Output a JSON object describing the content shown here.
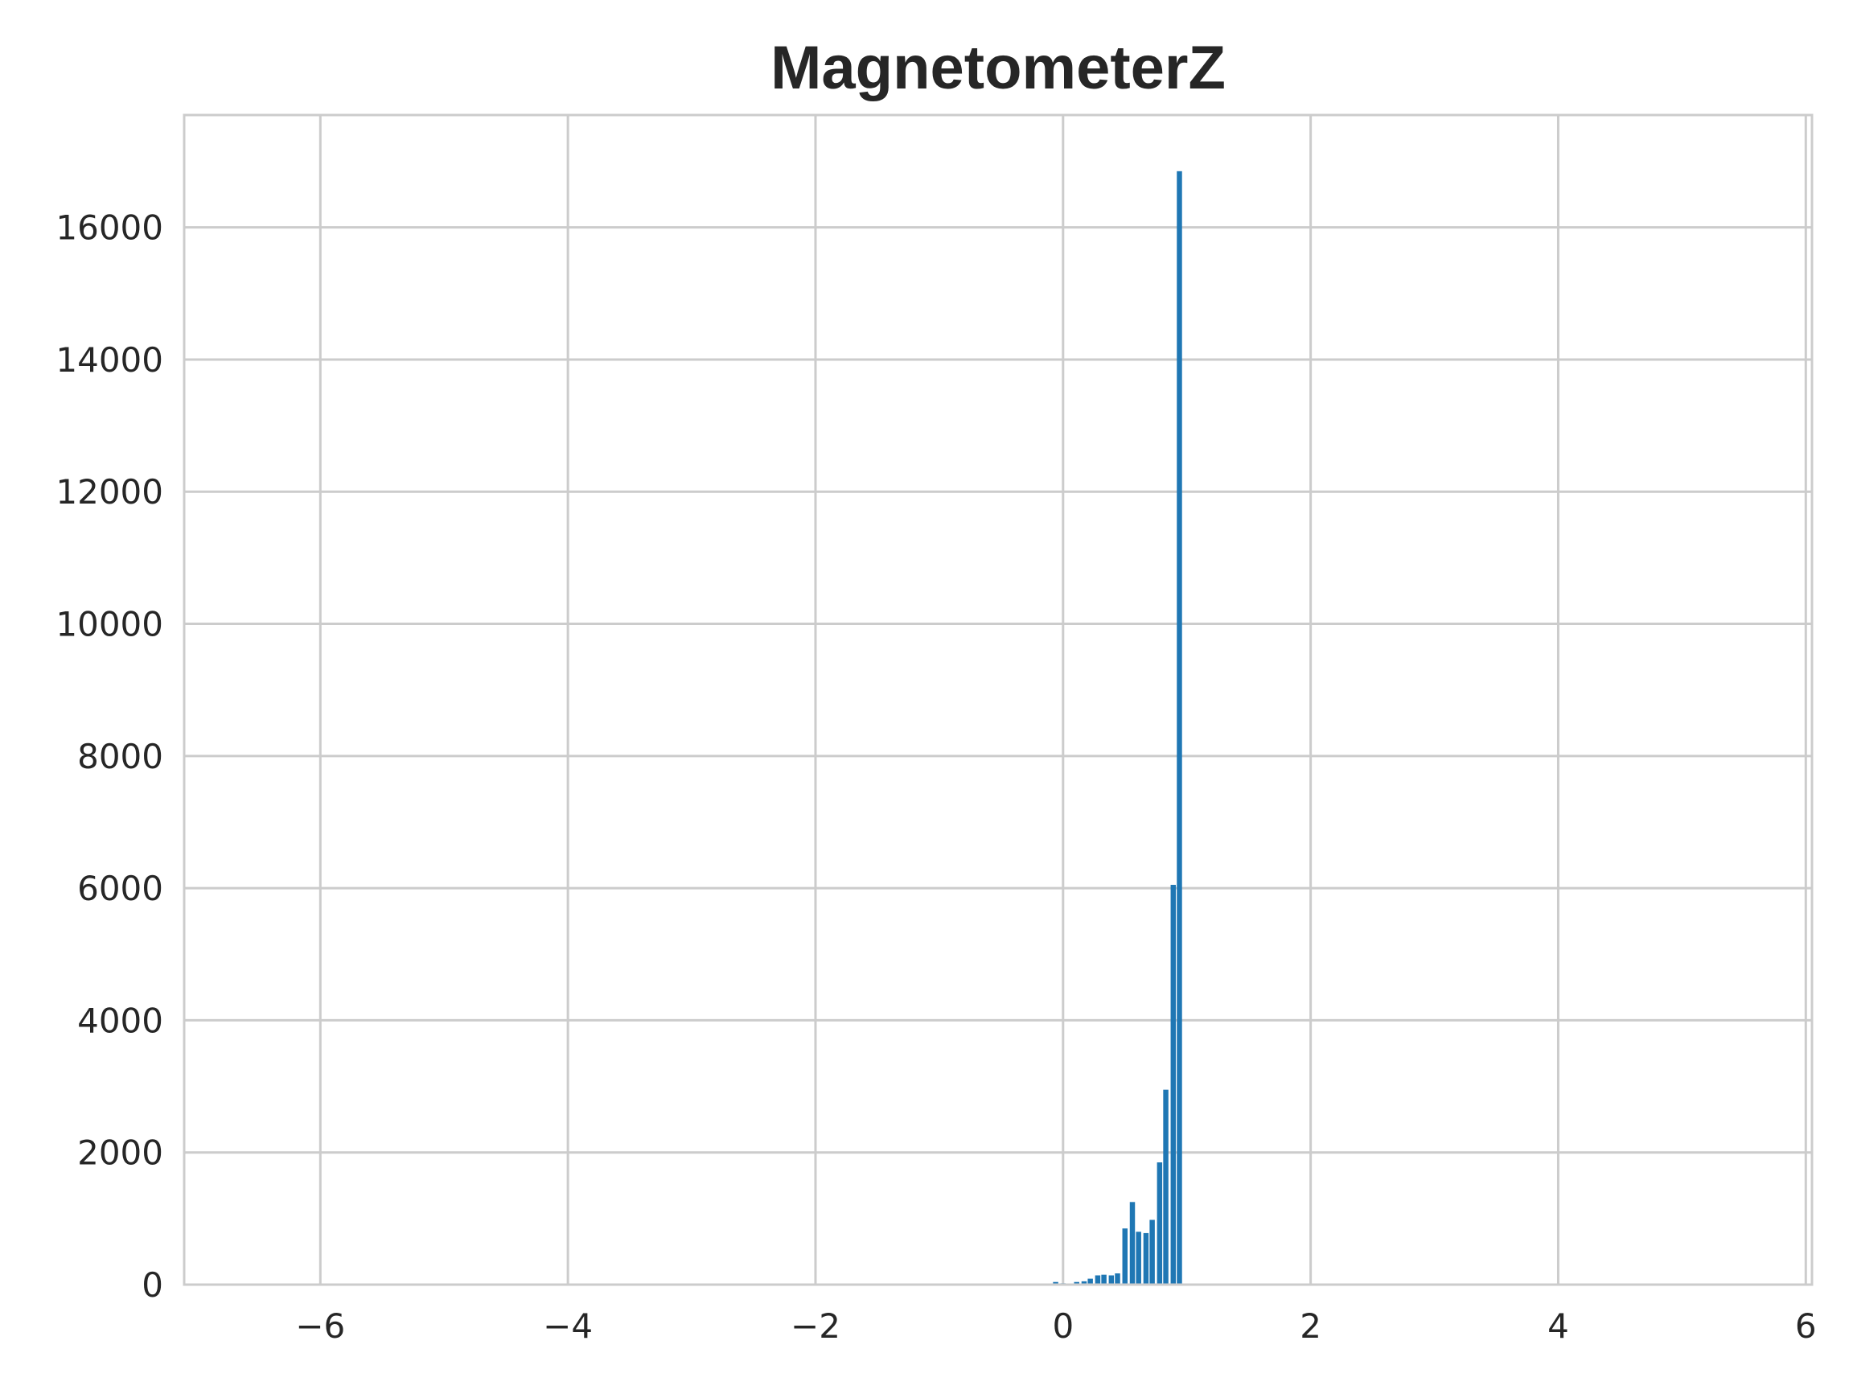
{
  "chart_data": {
    "type": "bar",
    "title": "MagnetometerZ",
    "xlabel": "",
    "ylabel": "",
    "xlim": [
      -7.1,
      6.05
    ],
    "ylim": [
      0,
      17700
    ],
    "x_ticks": [
      -6,
      -4,
      -2,
      0,
      2,
      4,
      6
    ],
    "y_ticks": [
      0,
      2000,
      4000,
      6000,
      8000,
      10000,
      12000,
      14000,
      16000
    ],
    "grid": true,
    "legend": "none",
    "bar_color": "#1f77b4",
    "bar_width": 0.042,
    "bins": [
      {
        "x": -0.06,
        "count": 40
      },
      {
        "x": 0.0,
        "count": 20
      },
      {
        "x": 0.06,
        "count": 15
      },
      {
        "x": 0.11,
        "count": 40
      },
      {
        "x": 0.17,
        "count": 50
      },
      {
        "x": 0.22,
        "count": 90
      },
      {
        "x": 0.28,
        "count": 140
      },
      {
        "x": 0.33,
        "count": 150
      },
      {
        "x": 0.39,
        "count": 140
      },
      {
        "x": 0.44,
        "count": 170
      },
      {
        "x": 0.5,
        "count": 850
      },
      {
        "x": 0.56,
        "count": 1250
      },
      {
        "x": 0.61,
        "count": 800
      },
      {
        "x": 0.67,
        "count": 780
      },
      {
        "x": 0.72,
        "count": 980
      },
      {
        "x": 0.78,
        "count": 1850
      },
      {
        "x": 0.83,
        "count": 2950
      },
      {
        "x": 0.89,
        "count": 6050
      },
      {
        "x": 0.94,
        "count": 16850
      }
    ]
  }
}
